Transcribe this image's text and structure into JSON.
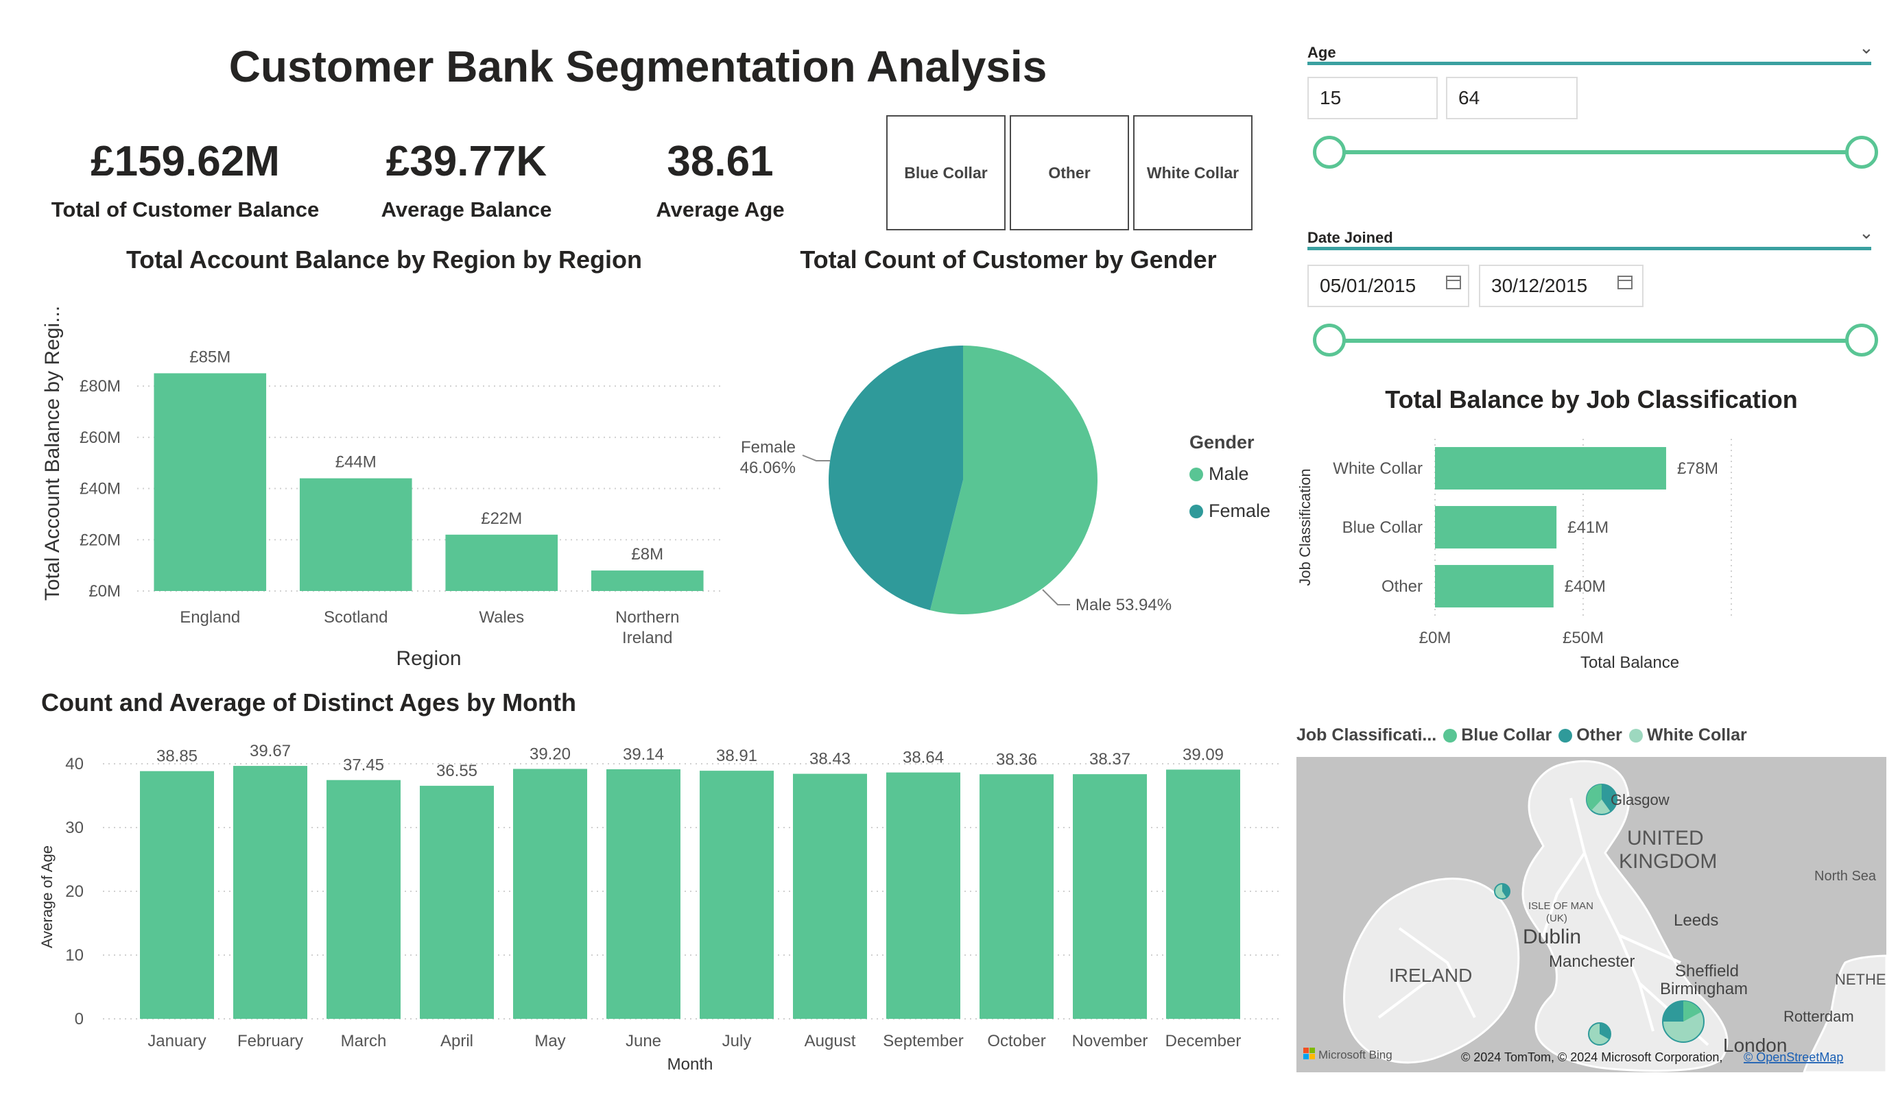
{
  "page_title": "Customer Bank Segmentation Analysis",
  "kpis": [
    {
      "value": "£159.62M",
      "label": "Total of Customer Balance"
    },
    {
      "value": "£39.77K",
      "label": "Average Balance"
    },
    {
      "value": "38.61",
      "label": "Average Age"
    }
  ],
  "job_slicer": [
    "Blue Collar",
    "Other",
    "White Collar"
  ],
  "filters": {
    "age": {
      "label": "Age",
      "min": "15",
      "max": "64"
    },
    "date_joined": {
      "label": "Date Joined",
      "start": "05/01/2015",
      "end": "30/12/2015"
    }
  },
  "colors": {
    "primary": "#59c594",
    "secondary": "#2f9a9a",
    "light": "#9dd8bf"
  },
  "region_chart": {
    "title": "Total Account Balance by Region by Region",
    "chart_data": {
      "type": "bar",
      "categories": [
        "England",
        "Scotland",
        "Wales",
        "Northern Ireland"
      ],
      "category_lines": [
        [
          "England"
        ],
        [
          "Scotland"
        ],
        [
          "Wales"
        ],
        [
          "Northern",
          "Ireland"
        ]
      ],
      "values": [
        85,
        44,
        22,
        8
      ],
      "data_labels": [
        "£85M",
        "£44M",
        "£22M",
        "£8M"
      ],
      "xlabel": "Region",
      "ylabel": "Total Account Balance by Regi...",
      "yticks": [
        "£0M",
        "£20M",
        "£40M",
        "£60M",
        "£80M"
      ],
      "ylim": [
        0,
        100
      ]
    }
  },
  "gender_chart": {
    "title": "Total Count of Customer by Gender",
    "chart_data": {
      "type": "pie",
      "legend_title": "Gender",
      "slices": [
        {
          "name": "Male",
          "value": 53.94,
          "label": "Male 53.94%",
          "color": "#59c594"
        },
        {
          "name": "Female",
          "value": 46.06,
          "label_lines": [
            "Female",
            "46.06%"
          ],
          "color": "#2f9a9a"
        }
      ]
    }
  },
  "job_chart": {
    "title": "Total Balance by Job Classification",
    "chart_data": {
      "type": "bar",
      "orientation": "horizontal",
      "categories": [
        "White Collar",
        "Blue Collar",
        "Other"
      ],
      "values": [
        78,
        41,
        40
      ],
      "data_labels": [
        "£78M",
        "£41M",
        "£40M"
      ],
      "xlabel": "Total Balance",
      "ylabel": "Job Classification",
      "xticks": [
        "£0M",
        "£50M"
      ],
      "xlim": [
        0,
        100
      ]
    }
  },
  "month_chart": {
    "title": "Count and Average of Distinct Ages by Month",
    "chart_data": {
      "type": "bar",
      "categories": [
        "January",
        "February",
        "March",
        "April",
        "May",
        "June",
        "July",
        "August",
        "September",
        "October",
        "November",
        "December"
      ],
      "values": [
        38.85,
        39.67,
        37.45,
        36.55,
        39.2,
        39.14,
        38.91,
        38.43,
        38.64,
        38.36,
        38.37,
        39.09
      ],
      "data_labels": [
        "38.85",
        "39.67",
        "37.45",
        "36.55",
        "39.20",
        "39.14",
        "38.91",
        "38.43",
        "38.64",
        "38.36",
        "38.37",
        "39.09"
      ],
      "xlabel": "Month",
      "ylabel": "Average of Age",
      "yticks": [
        "0",
        "10",
        "20",
        "30",
        "40"
      ],
      "ylim": [
        0,
        40
      ]
    }
  },
  "map": {
    "legend_title": "Job Classificati...",
    "legend_items": [
      {
        "label": "Blue Collar",
        "color": "#59c594"
      },
      {
        "label": "Other",
        "color": "#2f9a9a"
      },
      {
        "label": "White Collar",
        "color": "#9dd8bf"
      }
    ],
    "place_labels": [
      "Glasgow",
      "UNITED",
      "KINGDOM",
      "North Sea",
      "ISLE OF MAN",
      "(UK)",
      "Leeds",
      "Dublin",
      "IRELAND",
      "Manchester",
      "Sheffield",
      "Birmingham",
      "NETHER",
      "Rotterdam",
      "London"
    ],
    "brand": "Microsoft Bing",
    "attribution": "© 2024 TomTom, © 2024 Microsoft Corporation,",
    "attribution_link": "© OpenStreetMap"
  }
}
